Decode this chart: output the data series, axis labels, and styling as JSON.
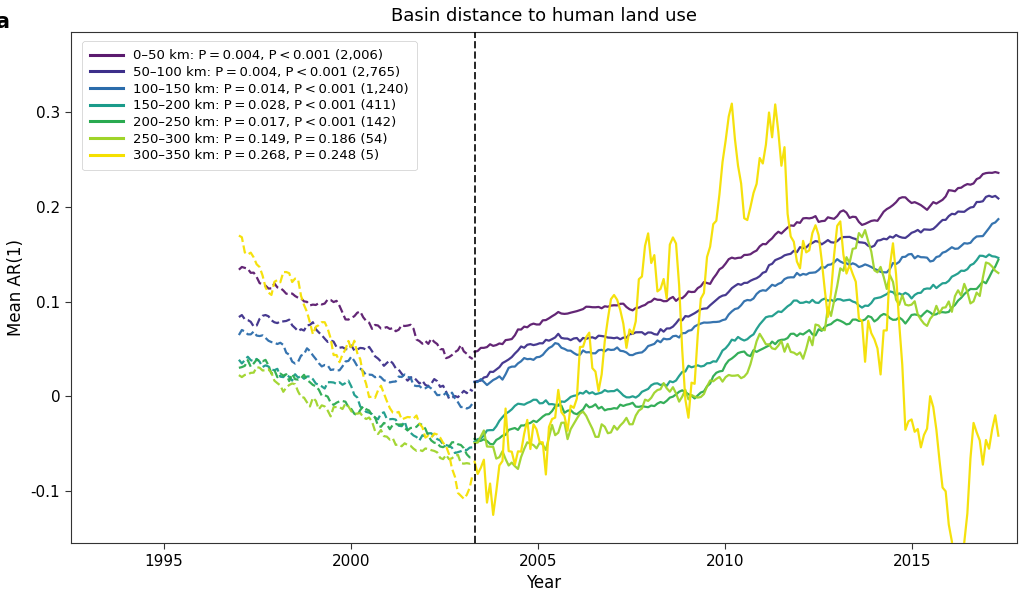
{
  "title": "Basin distance to human land use",
  "xlabel": "Year",
  "ylabel": "Mean AR(1)",
  "panel_label": "a",
  "dashed_line_x": 2003.3,
  "xlim": [
    1992.5,
    2017.8
  ],
  "ylim": [
    -0.155,
    0.385
  ],
  "yticks": [
    -0.1,
    0.0,
    0.1,
    0.2,
    0.3
  ],
  "xticks": [
    1995,
    2000,
    2005,
    2010,
    2015
  ],
  "series": [
    {
      "label": "0–50 km: P = 0.004, P < 0.001 (2,006)",
      "color": "#5b1a6e"
    },
    {
      "label": "50–100 km: P = 0.004, P < 0.001 (2,765)",
      "color": "#3d2f8a"
    },
    {
      "label": "100–150 km: P = 0.014, P < 0.001 (1,240)",
      "color": "#2b6cab"
    },
    {
      "label": "150–200 km: P = 0.028, P < 0.001 (411)",
      "color": "#1a9b8a"
    },
    {
      "label": "200–250 km: P = 0.017, P < 0.001 (142)",
      "color": "#2aaa50"
    },
    {
      "label": "250–300 km: P = 0.149, P = 0.186 (54)",
      "color": "#9fd42a"
    },
    {
      "label": "300–350 km: P = 0.268, P = 0.248 (5)",
      "color": "#f5e000"
    }
  ],
  "background_color": "#ffffff",
  "title_fontsize": 13,
  "label_fontsize": 12,
  "tick_fontsize": 11,
  "legend_fontsize": 9.5
}
